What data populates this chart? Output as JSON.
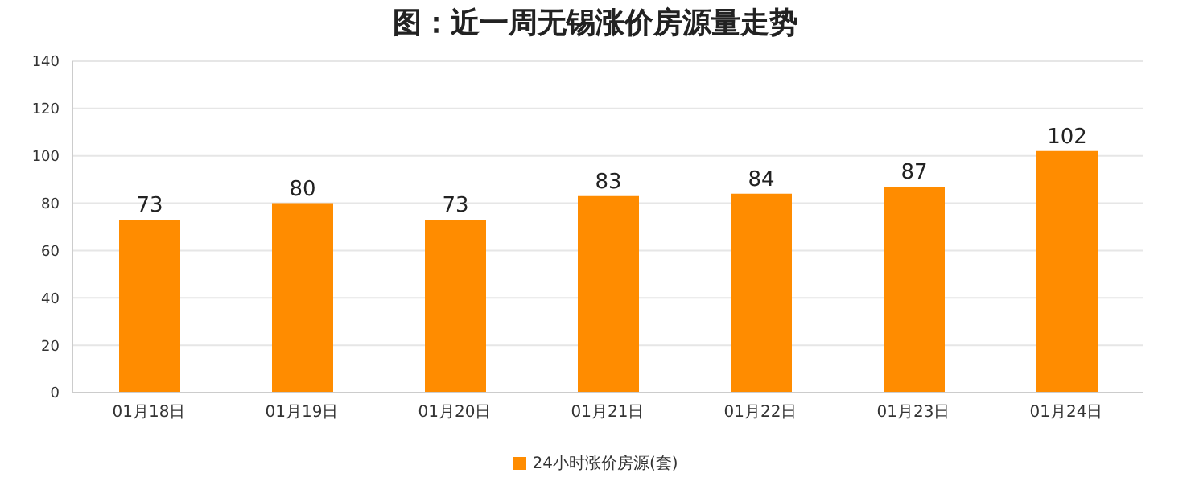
{
  "chart_data": {
    "type": "bar",
    "title": "图：近一周无锡涨价房源量走势",
    "categories": [
      "01月18日",
      "01月19日",
      "01月20日",
      "01月21日",
      "01月22日",
      "01月23日",
      "01月24日"
    ],
    "series": [
      {
        "name": "24小时涨价房源(套)",
        "color": "#ff8c00",
        "values": [
          73,
          80,
          73,
          83,
          84,
          87,
          102
        ]
      }
    ],
    "ylim": [
      0,
      140
    ],
    "yticks": [
      0,
      20,
      40,
      60,
      80,
      100,
      120,
      140
    ],
    "grid": "y",
    "legend": "bottom",
    "data_labels": true
  }
}
